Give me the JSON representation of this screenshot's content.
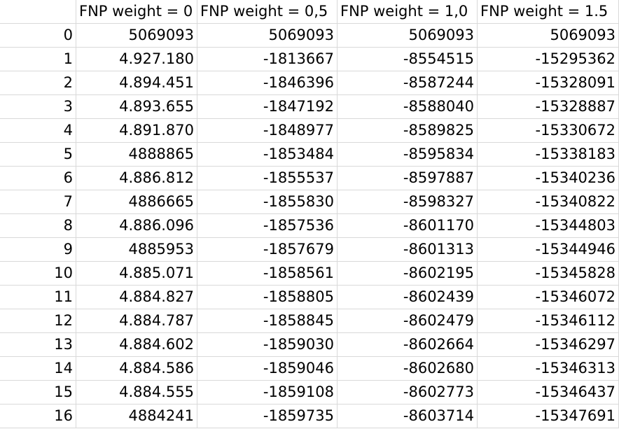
{
  "table": {
    "headers": [
      "",
      "FNP weight = 0",
      "FNP weight = 0,5",
      "FNP weight = 1,0",
      "FNP weight = 1.5"
    ],
    "rows": [
      [
        "0",
        "5069093",
        "5069093",
        "5069093",
        "5069093"
      ],
      [
        "1",
        "4.927.180",
        "-1813667",
        "-8554515",
        "-15295362"
      ],
      [
        "2",
        "4.894.451",
        "-1846396",
        "-8587244",
        "-15328091"
      ],
      [
        "3",
        "4.893.655",
        "-1847192",
        "-8588040",
        "-15328887"
      ],
      [
        "4",
        "4.891.870",
        "-1848977",
        "-8589825",
        "-15330672"
      ],
      [
        "5",
        "4888865",
        "-1853484",
        "-8595834",
        "-15338183"
      ],
      [
        "6",
        "4.886.812",
        "-1855537",
        "-8597887",
        "-15340236"
      ],
      [
        "7",
        "4886665",
        "-1855830",
        "-8598327",
        "-15340822"
      ],
      [
        "8",
        "4.886.096",
        "-1857536",
        "-8601170",
        "-15344803"
      ],
      [
        "9",
        "4885953",
        "-1857679",
        "-8601313",
        "-15344946"
      ],
      [
        "10",
        "4.885.071",
        "-1858561",
        "-8602195",
        "-15345828"
      ],
      [
        "11",
        "4.884.827",
        "-1858805",
        "-8602439",
        "-15346072"
      ],
      [
        "12",
        "4.884.787",
        "-1858845",
        "-8602479",
        "-15346112"
      ],
      [
        "13",
        "4.884.602",
        "-1859030",
        "-8602664",
        "-15346297"
      ],
      [
        "14",
        "4.884.586",
        "-1859046",
        "-8602680",
        "-15346313"
      ],
      [
        "15",
        "4.884.555",
        "-1859108",
        "-8602773",
        "-15346437"
      ],
      [
        "16",
        "4884241",
        "-1859735",
        "-8603714",
        "-15347691"
      ]
    ]
  }
}
